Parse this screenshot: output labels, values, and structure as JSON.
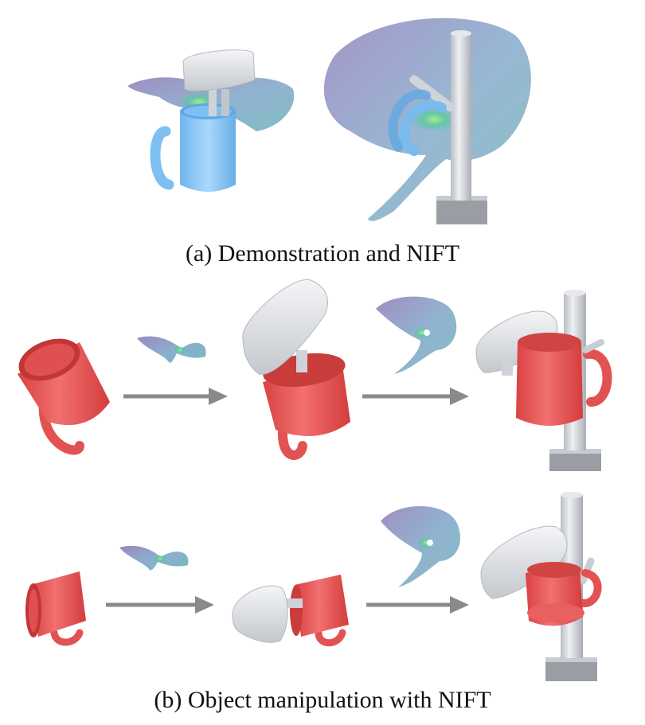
{
  "figure": {
    "caption_a": "(a) Demonstration and NIFT",
    "caption_b": "(b) Object manipulation with NIFT",
    "colors": {
      "mug_demo": "#8cc8f5",
      "mug_object": "#ec5454",
      "gripper": "#d9dde2",
      "stand": "#c9cdd2",
      "nift_surface": "#7b8fbf",
      "nift_highlight": "#7ee08a",
      "arrow": "#8a8a8a"
    },
    "icons": [
      "blue-mug",
      "red-mug",
      "gripper",
      "mug-stand",
      "nift-surface",
      "arrow-right"
    ]
  }
}
